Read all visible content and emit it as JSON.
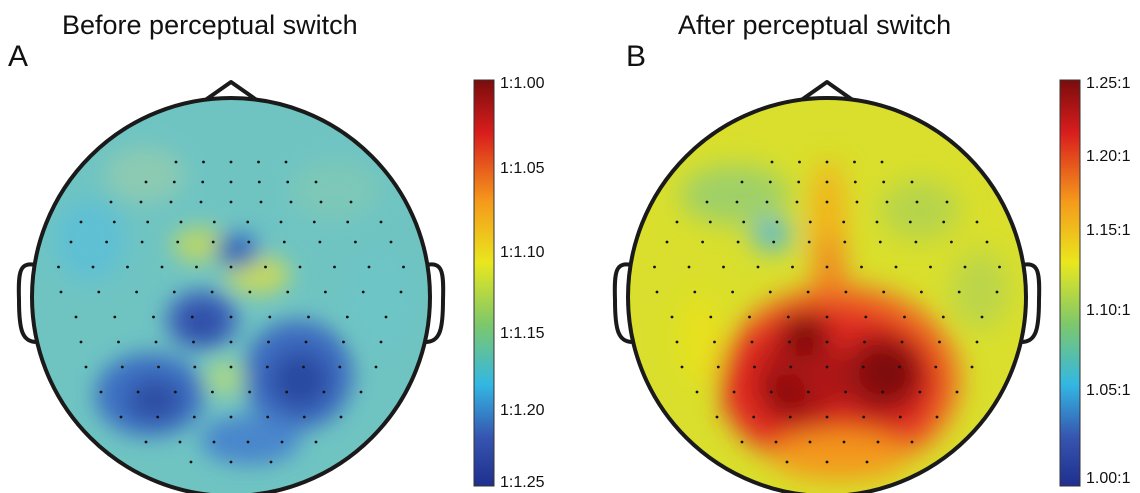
{
  "panels": [
    {
      "letter": "A",
      "title": "Before perceptual switch",
      "colorbar_ticks": [
        "1:1.00",
        "1:1.05",
        "1:1.10",
        "1:1.15",
        "1:1.20",
        "1:1.25"
      ]
    },
    {
      "letter": "B",
      "title": "After perceptual switch",
      "colorbar_ticks": [
        "1.25:1",
        "1.20:1",
        "1.15:1",
        "1.10:1",
        "1.05:1",
        "1.00:1"
      ]
    }
  ],
  "colors": {
    "map_low": "#1f2f8e",
    "map_mid": "#e9e71e",
    "map_high": "#7b0c0c"
  }
}
